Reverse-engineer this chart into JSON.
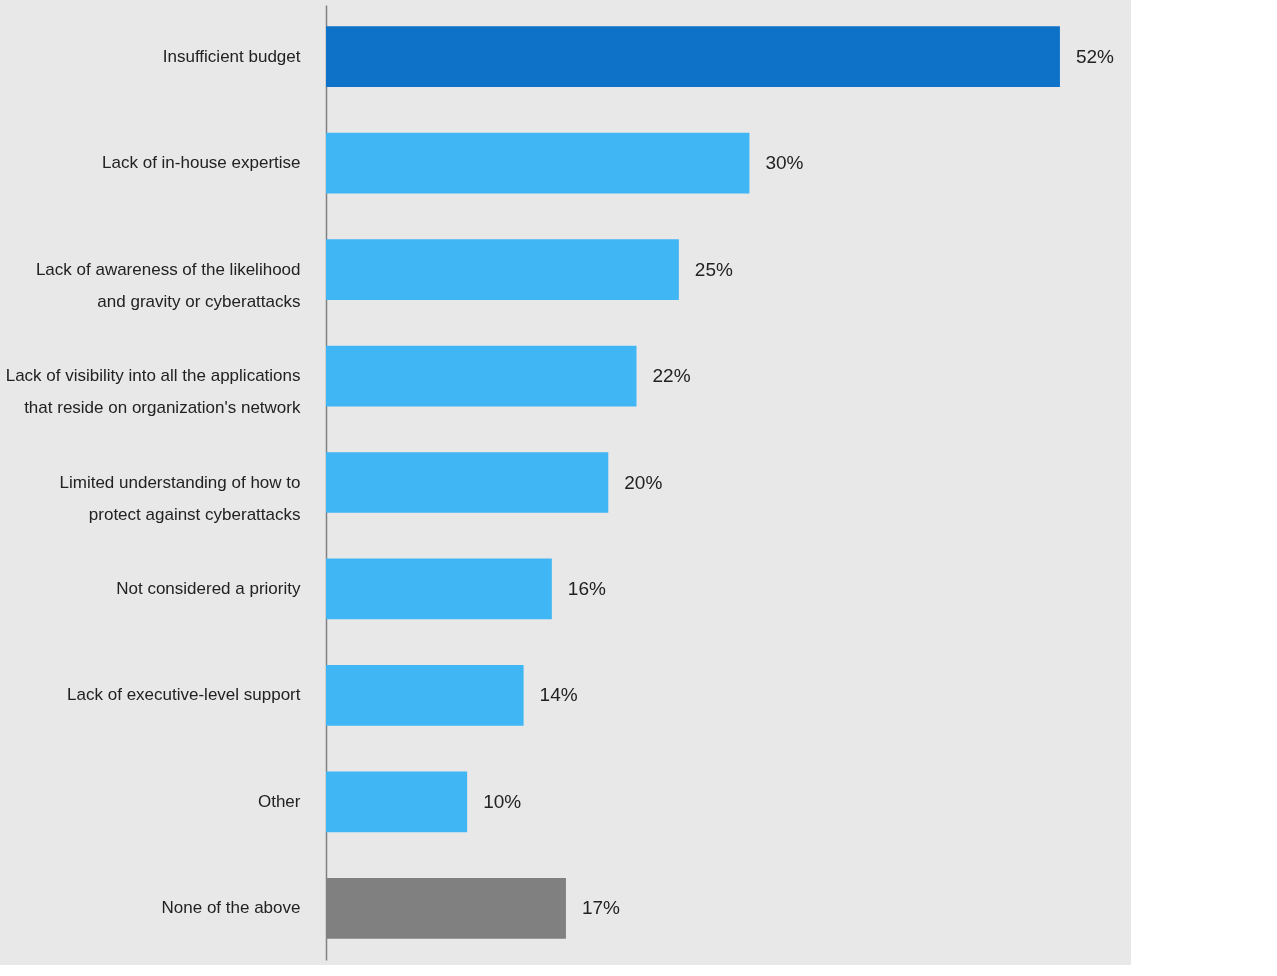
{
  "chart_data": {
    "type": "bar",
    "orientation": "horizontal",
    "categories": [
      "Insufficient budget",
      "Lack of in-house expertise",
      "Lack of awareness of the likelihood and gravity or cyberattacks",
      "Lack of visibility into all the applications that reside on organization's network",
      "Limited understanding of how to protect against cyberattacks",
      "Not considered a priority",
      "Lack of executive-level support",
      "Other",
      "None of the above"
    ],
    "values": [
      52,
      30,
      25,
      22,
      20,
      16,
      14,
      10,
      17
    ],
    "value_labels": [
      "52%",
      "30%",
      "25%",
      "22%",
      "20%",
      "16%",
      "14%",
      "10%",
      "17%"
    ],
    "colors": [
      "#0e72c8",
      "#41b6f4",
      "#41b6f4",
      "#41b6f4",
      "#41b6f4",
      "#41b6f4",
      "#41b6f4",
      "#41b6f4",
      "#808080"
    ],
    "grid": false,
    "tick_labels": "y"
  }
}
